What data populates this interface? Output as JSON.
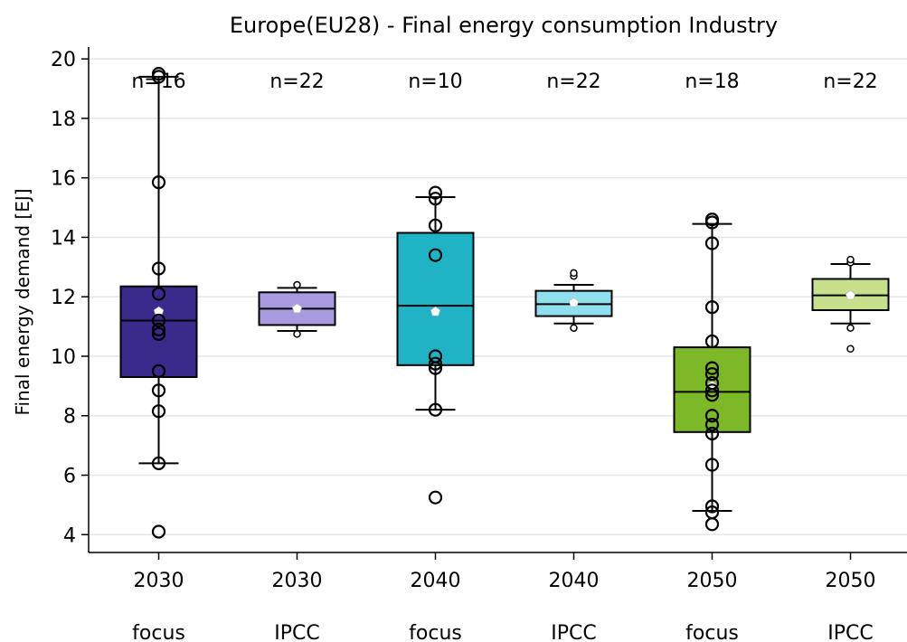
{
  "chart_data": {
    "type": "box",
    "title": "Europe(EU28) - Final energy consumption Industry",
    "ylabel": "Final energy demand [EJ]",
    "xlabel": "",
    "ylim": [
      3.4,
      20.4
    ],
    "yticks": [
      4,
      6,
      8,
      10,
      12,
      14,
      16,
      18,
      20
    ],
    "grid": "horizontal",
    "categories": [
      {
        "year": "2030",
        "group": "focus"
      },
      {
        "year": "2030",
        "group": "IPCC"
      },
      {
        "year": "2040",
        "group": "focus"
      },
      {
        "year": "2040",
        "group": "IPCC"
      },
      {
        "year": "2050",
        "group": "focus"
      },
      {
        "year": "2050",
        "group": "IPCC"
      }
    ],
    "boxes": [
      {
        "n_label": "n=16",
        "color": "#3a2a8c",
        "q1": 9.3,
        "median": 11.2,
        "q3": 12.35,
        "whisker_low": 6.4,
        "whisker_high": 19.4,
        "mean": 11.5,
        "points": [
          4.1,
          6.4,
          8.15,
          8.85,
          9.5,
          10.75,
          10.9,
          11.2,
          12.1,
          12.95,
          15.85,
          19.4,
          19.5
        ],
        "outliers": []
      },
      {
        "n_label": "n=22",
        "color": "#a99ae0",
        "q1": 11.05,
        "median": 11.6,
        "q3": 12.15,
        "whisker_low": 10.85,
        "whisker_high": 12.3,
        "mean": 11.6,
        "points": [],
        "outliers": [
          10.75,
          12.4
        ]
      },
      {
        "n_label": "n=10",
        "color": "#20b3c6",
        "q1": 9.7,
        "median": 11.7,
        "q3": 14.15,
        "whisker_low": 8.2,
        "whisker_high": 15.35,
        "mean": 11.5,
        "points": [
          5.25,
          8.2,
          9.6,
          9.75,
          10.0,
          13.4,
          14.4,
          15.3,
          15.5
        ],
        "outliers": []
      },
      {
        "n_label": "n=22",
        "color": "#8fdfee",
        "q1": 11.35,
        "median": 11.75,
        "q3": 12.2,
        "whisker_low": 11.1,
        "whisker_high": 12.4,
        "mean": 11.8,
        "points": [],
        "outliers": [
          10.95,
          12.7,
          12.8
        ]
      },
      {
        "n_label": "n=18",
        "color": "#7cb828",
        "q1": 7.45,
        "median": 8.8,
        "q3": 10.3,
        "whisker_low": 4.8,
        "whisker_high": 14.45,
        "mean": 9.0,
        "points": [
          4.35,
          4.75,
          4.95,
          6.35,
          7.4,
          7.7,
          8.0,
          8.7,
          8.85,
          9.1,
          9.4,
          9.6,
          10.5,
          11.65,
          13.8,
          14.5,
          14.6
        ],
        "outliers": []
      },
      {
        "n_label": "n=22",
        "color": "#c8e08c",
        "q1": 11.55,
        "median": 12.05,
        "q3": 12.6,
        "whisker_low": 11.1,
        "whisker_high": 13.1,
        "mean": 12.05,
        "points": [],
        "outliers": [
          10.25,
          10.95,
          13.15,
          13.25
        ]
      }
    ]
  }
}
